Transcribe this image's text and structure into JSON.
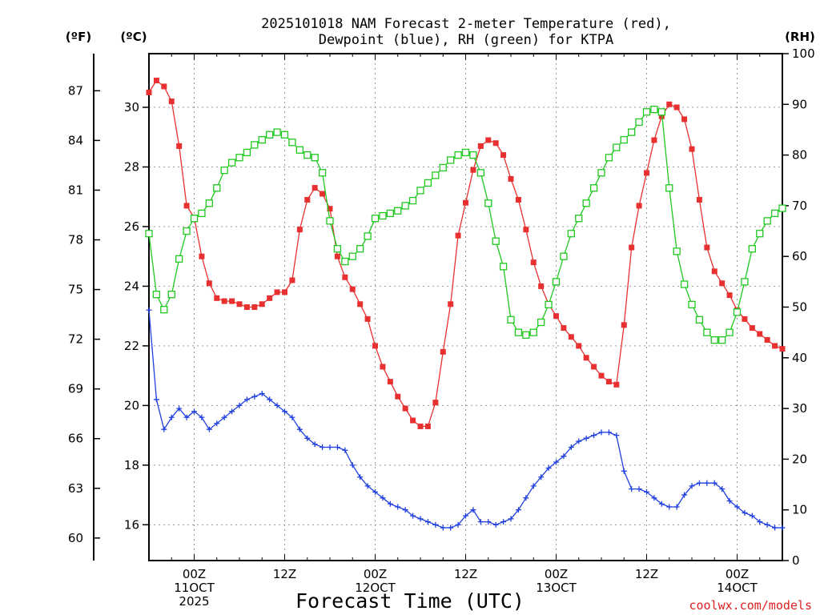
{
  "chart_data": {
    "type": "line",
    "title_line1": "2025101018 NAM Forecast 2-meter Temperature (red),",
    "title_line2": "Dewpoint (blue), RH (green) for KTPA",
    "xlabel": "Forecast Time (UTC)",
    "credit": "coolwx.com/models",
    "left_unit_f": "(ºF)",
    "left_unit_c": "(ºC)",
    "right_unit": "(RH)",
    "x_start_hour": 18,
    "x_end_hour": 102,
    "x_ticks": [
      {
        "hour": 24,
        "lines": [
          "00Z",
          "11OCT",
          "2025"
        ]
      },
      {
        "hour": 36,
        "lines": [
          "12Z"
        ]
      },
      {
        "hour": 48,
        "lines": [
          "00Z",
          "12OCT"
        ]
      },
      {
        "hour": 60,
        "lines": [
          "12Z"
        ]
      },
      {
        "hour": 72,
        "lines": [
          "00Z",
          "13OCT"
        ]
      },
      {
        "hour": 84,
        "lines": [
          "12Z"
        ]
      },
      {
        "hour": 96,
        "lines": [
          "00Z",
          "14OCT"
        ]
      }
    ],
    "y_left_c": {
      "min": 14.8,
      "max": 31.8,
      "ticks": [
        16,
        18,
        20,
        22,
        24,
        26,
        28,
        30
      ]
    },
    "y_left_f": {
      "ticks": [
        60,
        63,
        66,
        69,
        72,
        75,
        78,
        81,
        84,
        87
      ]
    },
    "y_right_rh": {
      "min": 0,
      "max": 100,
      "ticks": [
        0,
        10,
        20,
        30,
        40,
        50,
        60,
        70,
        80,
        90,
        100
      ]
    },
    "series": [
      {
        "name": "2-meter Temperature (°C)",
        "color": "#e83030",
        "axis": "C",
        "marker": "filled-square",
        "x": [
          18,
          19,
          20,
          21,
          22,
          23,
          24,
          25,
          26,
          27,
          28,
          29,
          30,
          31,
          32,
          33,
          34,
          35,
          36,
          37,
          38,
          39,
          40,
          41,
          42,
          43,
          44,
          45,
          46,
          47,
          48,
          49,
          50,
          51,
          52,
          53,
          54,
          55,
          56,
          57,
          58,
          59,
          60,
          61,
          62,
          63,
          64,
          65,
          66,
          67,
          68,
          69,
          70,
          71,
          72,
          73,
          74,
          75,
          76,
          77,
          78,
          79,
          80,
          81,
          82,
          83,
          84,
          85,
          86,
          87,
          88,
          89,
          90,
          91,
          92,
          93,
          94,
          95,
          96,
          97,
          98,
          99,
          100,
          101,
          102
        ],
        "values": [
          30.5,
          30.9,
          30.7,
          30.2,
          28.7,
          26.7,
          26.3,
          25.0,
          24.1,
          23.6,
          23.5,
          23.5,
          23.4,
          23.3,
          23.3,
          23.4,
          23.6,
          23.8,
          23.8,
          24.2,
          25.9,
          26.9,
          27.3,
          27.1,
          26.6,
          25.0,
          24.3,
          23.9,
          23.4,
          22.9,
          22.0,
          21.3,
          20.8,
          20.3,
          19.9,
          19.5,
          19.3,
          19.3,
          20.1,
          21.8,
          23.4,
          25.7,
          26.8,
          27.9,
          28.7,
          28.9,
          28.8,
          28.4,
          27.6,
          26.9,
          25.9,
          24.8,
          24.0,
          23.4,
          23.0,
          22.6,
          22.3,
          22.0,
          21.6,
          21.3,
          21.0,
          20.8,
          20.7,
          22.7,
          25.3,
          26.7,
          27.8,
          28.9,
          29.7,
          30.1,
          30.0,
          29.6,
          28.6,
          26.9,
          25.3,
          24.5,
          24.1,
          23.7,
          23.2,
          22.9,
          22.6,
          22.4,
          22.2,
          22.0,
          21.9
        ]
      },
      {
        "name": "Dewpoint (°C)",
        "color": "#2040e0",
        "axis": "C",
        "marker": "plus",
        "x": [
          18,
          19,
          20,
          21,
          22,
          23,
          24,
          25,
          26,
          27,
          28,
          29,
          30,
          31,
          32,
          33,
          34,
          35,
          36,
          37,
          38,
          39,
          40,
          41,
          42,
          43,
          44,
          45,
          46,
          47,
          48,
          49,
          50,
          51,
          52,
          53,
          54,
          55,
          56,
          57,
          58,
          59,
          60,
          61,
          62,
          63,
          64,
          65,
          66,
          67,
          68,
          69,
          70,
          71,
          72,
          73,
          74,
          75,
          76,
          77,
          78,
          79,
          80,
          81,
          82,
          83,
          84,
          85,
          86,
          87,
          88,
          89,
          90,
          91,
          92,
          93,
          94,
          95,
          96,
          97,
          98,
          99,
          100,
          101,
          102
        ],
        "values": [
          23.2,
          20.2,
          19.2,
          19.6,
          19.9,
          19.6,
          19.8,
          19.6,
          19.2,
          19.4,
          19.6,
          19.8,
          20.0,
          20.2,
          20.3,
          20.4,
          20.2,
          20.0,
          19.8,
          19.6,
          19.2,
          18.9,
          18.7,
          18.6,
          18.6,
          18.6,
          18.5,
          18.0,
          17.6,
          17.3,
          17.1,
          16.9,
          16.7,
          16.6,
          16.5,
          16.3,
          16.2,
          16.1,
          16.0,
          15.9,
          15.9,
          16.0,
          16.3,
          16.5,
          16.1,
          16.1,
          16.0,
          16.1,
          16.2,
          16.5,
          16.9,
          17.3,
          17.6,
          17.9,
          18.1,
          18.3,
          18.6,
          18.8,
          18.9,
          19.0,
          19.1,
          19.1,
          19.0,
          17.8,
          17.2,
          17.2,
          17.1,
          16.9,
          16.7,
          16.6,
          16.6,
          17.0,
          17.3,
          17.4,
          17.4,
          17.4,
          17.2,
          16.8,
          16.6,
          16.4,
          16.3,
          16.1,
          16.0,
          15.9,
          15.9
        ]
      },
      {
        "name": "RH (%)",
        "color": "#20c820",
        "axis": "RH",
        "marker": "open-square",
        "x": [
          18,
          19,
          20,
          21,
          22,
          23,
          24,
          25,
          26,
          27,
          28,
          29,
          30,
          31,
          32,
          33,
          34,
          35,
          36,
          37,
          38,
          39,
          40,
          41,
          42,
          43,
          44,
          45,
          46,
          47,
          48,
          49,
          50,
          51,
          52,
          53,
          54,
          55,
          56,
          57,
          58,
          59,
          60,
          61,
          62,
          63,
          64,
          65,
          66,
          67,
          68,
          69,
          70,
          71,
          72,
          73,
          74,
          75,
          76,
          77,
          78,
          79,
          80,
          81,
          82,
          83,
          84,
          85,
          86,
          87,
          88,
          89,
          90,
          91,
          92,
          93,
          94,
          95,
          96,
          97,
          98,
          99,
          100,
          101,
          102
        ],
        "values": [
          64.5,
          52.5,
          49.5,
          52.5,
          59.5,
          65,
          67.5,
          68.5,
          70.5,
          73.5,
          77,
          78.5,
          79.5,
          80.5,
          82,
          83,
          84,
          84.5,
          84,
          82.5,
          81,
          80,
          79.5,
          76.5,
          67,
          61.5,
          59,
          60,
          61.5,
          64,
          67.5,
          68,
          68.5,
          69,
          70,
          71,
          73,
          74.5,
          76,
          77.5,
          79,
          80,
          80.5,
          80,
          76.5,
          70.5,
          63,
          58,
          47.5,
          45,
          44.5,
          45,
          47,
          50.5,
          55,
          60,
          64.5,
          67.5,
          70.5,
          73.5,
          76.5,
          79.5,
          81.5,
          83,
          84.5,
          86.5,
          88.5,
          89,
          88.5,
          73.5,
          61,
          54.5,
          50.5,
          47.5,
          45,
          43.5,
          43.5,
          45,
          49,
          55,
          61.5,
          64.5,
          67,
          68.5,
          69.5
        ]
      }
    ]
  }
}
